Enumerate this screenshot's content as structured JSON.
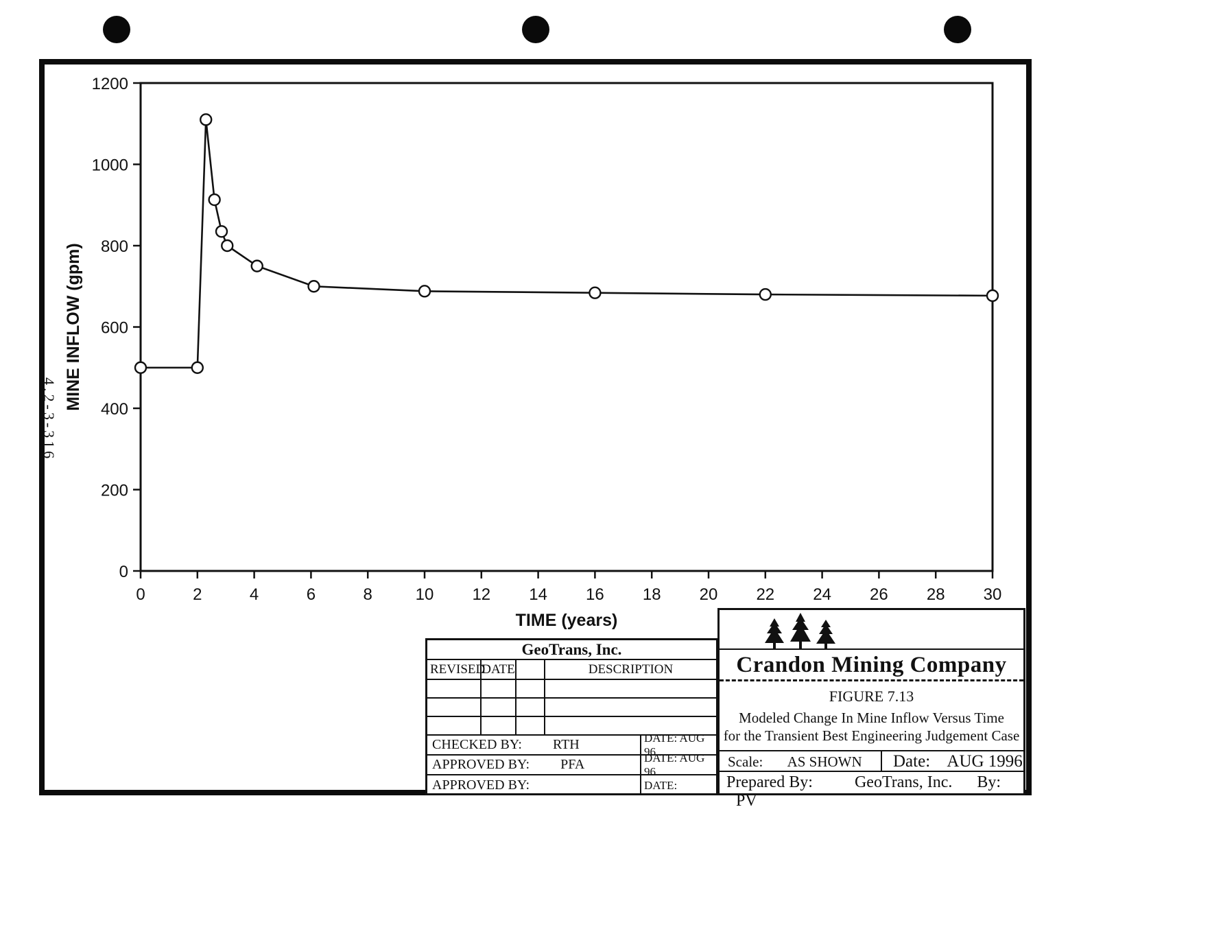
{
  "document": {
    "stamp": "4.2-3-316"
  },
  "chart_data": {
    "type": "line",
    "title": "",
    "xlabel": "TIME (years)",
    "ylabel": "MINE INFLOW (gpm)",
    "xlim": [
      0,
      30
    ],
    "ylim": [
      0,
      1200
    ],
    "x_ticks": [
      0,
      2,
      4,
      6,
      8,
      10,
      12,
      14,
      16,
      18,
      20,
      22,
      24,
      26,
      28,
      30
    ],
    "y_ticks": [
      0,
      200,
      400,
      600,
      800,
      1000,
      1200
    ],
    "grid": false,
    "legend": false,
    "series": [
      {
        "name": "mine-inflow",
        "marker": "open-circle",
        "color": "#111111",
        "x": [
          0,
          2,
          2.3,
          2.6,
          2.85,
          3.05,
          4.1,
          6.1,
          10,
          16,
          22,
          30
        ],
        "y": [
          500,
          500,
          1110,
          913,
          835,
          800,
          750,
          700,
          688,
          684,
          680,
          677
        ]
      }
    ]
  },
  "title_block": {
    "geotrans_header": "GeoTrans, Inc.",
    "revision_headers": {
      "revised": "REVISED",
      "date": "DATE",
      "description": "DESCRIPTION"
    },
    "signoff_rows": [
      {
        "label": "CHECKED BY:",
        "name": "RTH",
        "date": "DATE: AUG 96"
      },
      {
        "label": "APPROVED BY:",
        "name": "PFA",
        "date": "DATE: AUG 96"
      },
      {
        "label": "APPROVED BY:",
        "name": "",
        "date": "DATE:"
      }
    ],
    "company": "Crandon Mining Company",
    "figure_number": "FIGURE 7.13",
    "figure_title_line1": "Modeled Change In Mine Inflow Versus Time",
    "figure_title_line2": "for the Transient Best Engineering Judgement Case",
    "scale_label": "Scale:",
    "scale_value": "AS SHOWN",
    "date_label": "Date:",
    "date_value": "AUG 1996",
    "prepared_by_label": "Prepared By:",
    "prepared_by_value": "GeoTrans, Inc.",
    "by_label": "By:",
    "by_value": "PV"
  }
}
